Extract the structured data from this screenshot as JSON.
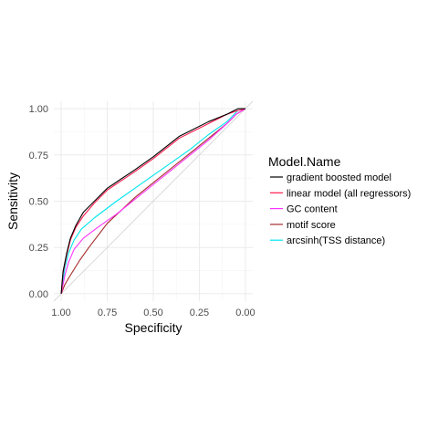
{
  "chart_data": {
    "type": "line",
    "xlabel": "Specificity",
    "ylabel": "Sensitivity",
    "xlim": [
      1.04,
      -0.04
    ],
    "ylim": [
      -0.04,
      1.04
    ],
    "x_reversed": true,
    "x_ticks": [
      1.0,
      0.75,
      0.5,
      0.25,
      0.0
    ],
    "x_tick_labels": [
      "1.00",
      "0.75",
      "0.50",
      "0.25",
      "0.00"
    ],
    "y_ticks": [
      0.0,
      0.25,
      0.5,
      0.75,
      1.0
    ],
    "y_tick_labels": [
      "0.00",
      "0.25",
      "0.50",
      "0.75",
      "1.00"
    ],
    "grid": true,
    "reference_line": {
      "from": [
        1,
        0
      ],
      "to": [
        0,
        1
      ],
      "color": "#d9d9d9"
    },
    "legend": {
      "title": "Model.Name",
      "position": "right"
    },
    "series": [
      {
        "name": "gradient boosted model",
        "color": "#000000",
        "x": [
          1.0,
          0.99,
          0.97,
          0.95,
          0.92,
          0.88,
          0.82,
          0.75,
          0.6,
          0.5,
          0.36,
          0.2,
          0.1,
          0.04,
          0.0
        ],
        "y": [
          0.0,
          0.12,
          0.22,
          0.3,
          0.37,
          0.44,
          0.5,
          0.57,
          0.67,
          0.74,
          0.85,
          0.93,
          0.97,
          1.0,
          1.0
        ]
      },
      {
        "name": "linear model (all regressors)",
        "color": "#ff1a4d",
        "x": [
          1.0,
          0.99,
          0.97,
          0.95,
          0.92,
          0.88,
          0.82,
          0.75,
          0.6,
          0.5,
          0.36,
          0.2,
          0.1,
          0.04,
          0.0
        ],
        "y": [
          0.0,
          0.11,
          0.21,
          0.29,
          0.36,
          0.42,
          0.49,
          0.56,
          0.66,
          0.73,
          0.84,
          0.92,
          0.97,
          0.99,
          1.0
        ]
      },
      {
        "name": "GC content",
        "color": "#ff33ff",
        "x": [
          1.0,
          0.98,
          0.96,
          0.93,
          0.88,
          0.8,
          0.7,
          0.6,
          0.5,
          0.4,
          0.3,
          0.2,
          0.1,
          0.05,
          0.0
        ],
        "y": [
          0.0,
          0.1,
          0.17,
          0.24,
          0.3,
          0.36,
          0.43,
          0.51,
          0.59,
          0.67,
          0.75,
          0.83,
          0.92,
          0.97,
          1.0
        ]
      },
      {
        "name": "motif score",
        "color": "#a52a2a",
        "x": [
          1.0,
          0.98,
          0.95,
          0.9,
          0.85,
          0.75,
          0.6,
          0.5,
          0.4,
          0.3,
          0.2,
          0.1,
          0.05,
          0.0
        ],
        "y": [
          0.0,
          0.05,
          0.1,
          0.18,
          0.25,
          0.38,
          0.52,
          0.6,
          0.68,
          0.76,
          0.84,
          0.92,
          0.97,
          1.0
        ]
      },
      {
        "name": "arcsinh(TSS distance)",
        "color": "#00e5ee",
        "x": [
          1.0,
          0.98,
          0.96,
          0.93,
          0.89,
          0.82,
          0.7,
          0.6,
          0.5,
          0.4,
          0.3,
          0.2,
          0.1,
          0.04,
          0.0
        ],
        "y": [
          0.0,
          0.14,
          0.22,
          0.29,
          0.35,
          0.41,
          0.5,
          0.57,
          0.64,
          0.71,
          0.78,
          0.86,
          0.93,
          0.99,
          1.0
        ]
      }
    ]
  }
}
